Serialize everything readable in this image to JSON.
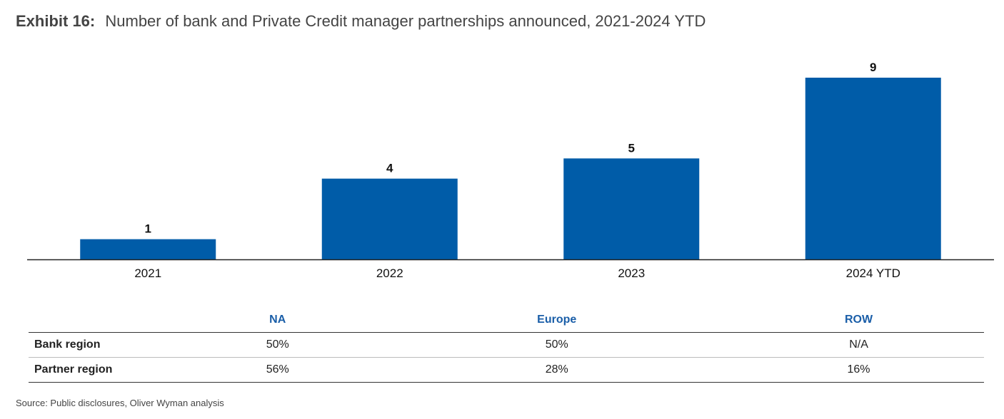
{
  "title": {
    "lead": "Exhibit 16:",
    "text": "Number of bank and Private Credit manager partnerships announced, 2021-2024 YTD"
  },
  "chart_data": {
    "type": "bar",
    "categories": [
      "2021",
      "2022",
      "2023",
      "2024 YTD"
    ],
    "values": [
      1,
      4,
      5,
      9
    ],
    "title": "Number of bank and Private Credit manager partnerships announced, 2021-2024 YTD",
    "xlabel": "",
    "ylabel": "",
    "ylim": [
      0,
      9
    ],
    "grid": false,
    "data_labels": true,
    "color": "#005ca8"
  },
  "table": {
    "columns": [
      "NA",
      "Europe",
      "ROW"
    ],
    "rows": [
      {
        "label": "Bank region",
        "values": [
          "50%",
          "50%",
          "N/A"
        ]
      },
      {
        "label": "Partner region",
        "values": [
          "56%",
          "28%",
          "16%"
        ]
      }
    ]
  },
  "source": "Source: Public disclosures, Oliver Wyman analysis"
}
